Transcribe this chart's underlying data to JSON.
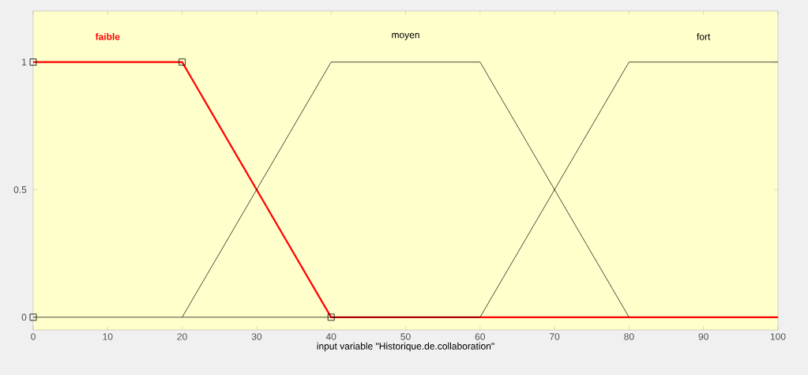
{
  "chart_data": {
    "type": "line",
    "xlabel": "input variable \"Historique.de.collaboration\"",
    "xlim": [
      0,
      100
    ],
    "ylim": [
      -0.05,
      1.2
    ],
    "xticks": [
      0,
      10,
      20,
      30,
      40,
      50,
      60,
      70,
      80,
      90,
      100
    ],
    "yticks": [
      0,
      0.5,
      1
    ],
    "grid": false,
    "series": [
      {
        "name": "faible",
        "color": "#ff0000",
        "x": [
          0,
          20,
          40,
          100
        ],
        "values": [
          1,
          1,
          0,
          0
        ]
      },
      {
        "name": "moyen",
        "color": "#000000",
        "x": [
          20,
          40,
          60,
          80
        ],
        "values": [
          0,
          1,
          1,
          0
        ]
      },
      {
        "name": "fort",
        "color": "#000000",
        "x": [
          0,
          60,
          80,
          100
        ],
        "values": [
          0,
          0,
          1,
          1
        ]
      },
      {
        "type": "scatter",
        "color": "#000000",
        "marker": "square",
        "x": [
          0,
          0,
          20,
          40
        ],
        "values": [
          0,
          1,
          1,
          0
        ]
      }
    ]
  }
}
